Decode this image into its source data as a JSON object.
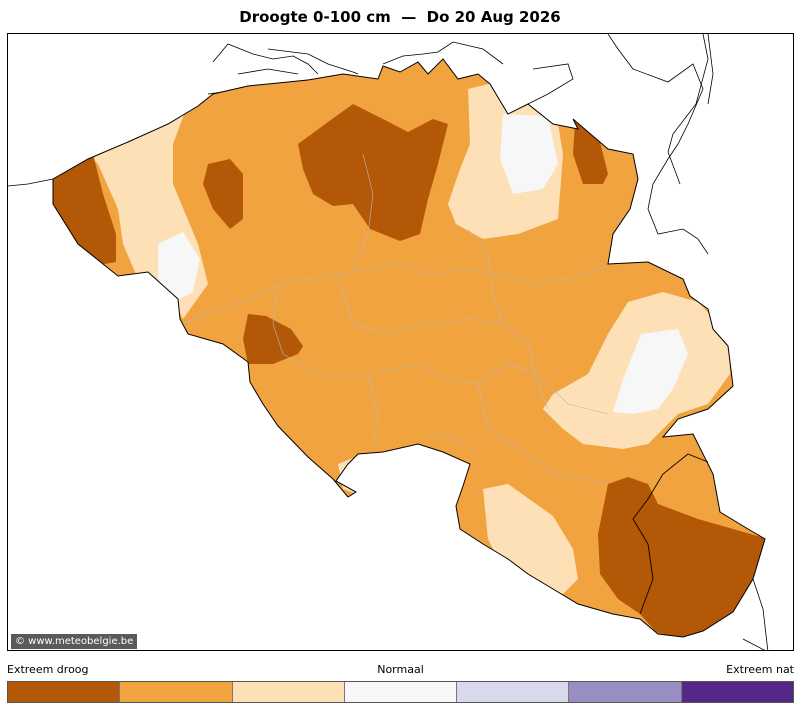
{
  "title": "Droogte 0-100 cm  —  Do 20 Aug 2026",
  "credit": "© www.meteobelgie.be",
  "legend": {
    "left_label": "Extreem droog",
    "mid_label": "Normaal",
    "right_label": "Extreem nat",
    "colors": [
      "#b35806",
      "#f1a340",
      "#fee0b6",
      "#f7f7f7",
      "#d8daeb",
      "#998ec3",
      "#542788"
    ]
  }
}
